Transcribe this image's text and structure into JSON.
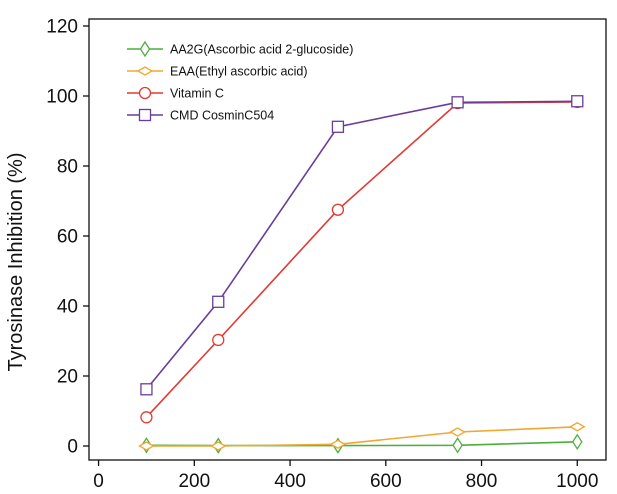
{
  "chart_data": {
    "type": "line",
    "title": "",
    "xlabel": "",
    "ylabel": "Tyrosinase Inhibition (%)",
    "xlim": [
      -20,
      1060
    ],
    "ylim": [
      -4,
      122
    ],
    "xticks": [
      0,
      200,
      400,
      600,
      800,
      1000
    ],
    "yticks": [
      0,
      20,
      40,
      60,
      80,
      100,
      120
    ],
    "grid": false,
    "legend_position": "top-left",
    "series": [
      {
        "name": "AA2G(Ascorbic acid 2-glucoside)",
        "color": "#4caf3a",
        "marker": "diamond",
        "x": [
          100,
          250,
          500,
          750,
          1000
        ],
        "y": [
          0.2,
          0.1,
          0.1,
          0.2,
          1.2
        ]
      },
      {
        "name": "EAA(Ethyl ascorbic acid)",
        "color": "#f0a830",
        "marker": "diamond-h",
        "x": [
          100,
          250,
          500,
          750,
          1000
        ],
        "y": [
          0.0,
          0.0,
          0.5,
          4.0,
          5.5
        ]
      },
      {
        "name": "Vitamin C",
        "color": "#e03a32",
        "marker": "circle",
        "x": [
          100,
          250,
          500,
          750,
          1000
        ],
        "y": [
          8.2,
          30.3,
          67.5,
          98.0,
          98.3
        ]
      },
      {
        "name": "CMD CosminC504",
        "color": "#6a3d9a",
        "marker": "square",
        "x": [
          100,
          250,
          500,
          750,
          1000
        ],
        "y": [
          16.2,
          41.2,
          91.2,
          98.2,
          98.5
        ]
      }
    ]
  }
}
